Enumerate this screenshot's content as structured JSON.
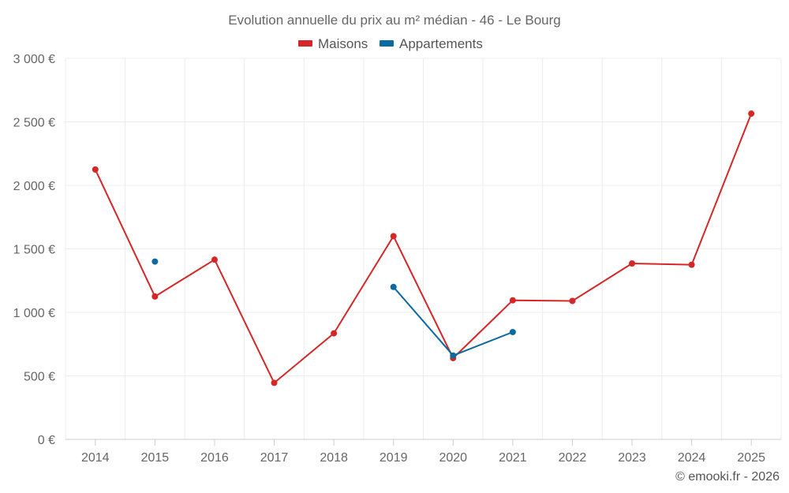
{
  "chart_data": {
    "type": "line",
    "title": "Evolution annuelle du prix au m² médian - 46 - Le Bourg",
    "categories": [
      "2014",
      "2015",
      "2016",
      "2017",
      "2018",
      "2019",
      "2020",
      "2021",
      "2022",
      "2023",
      "2024",
      "2025"
    ],
    "y_ticks": [
      0,
      500,
      1000,
      1500,
      2000,
      2500,
      3000
    ],
    "y_tick_labels": [
      "0 €",
      "500 €",
      "1 000 €",
      "1 500 €",
      "2 000 €",
      "2 500 €",
      "3 000 €"
    ],
    "ylim": [
      0,
      3000
    ],
    "xlabel": "",
    "ylabel": "",
    "grid": true,
    "legend_position": "top-center",
    "series": [
      {
        "name": "Maisons",
        "color": "#d62728",
        "values": [
          2125,
          1125,
          1415,
          445,
          835,
          1600,
          640,
          1095,
          1090,
          1385,
          1375,
          2565
        ]
      },
      {
        "name": "Appartements",
        "color": "#0b6aa0",
        "values": [
          null,
          1400,
          null,
          null,
          null,
          1200,
          660,
          845,
          null,
          null,
          null,
          null
        ]
      }
    ],
    "credit": "© emooki.fr - 2026"
  }
}
